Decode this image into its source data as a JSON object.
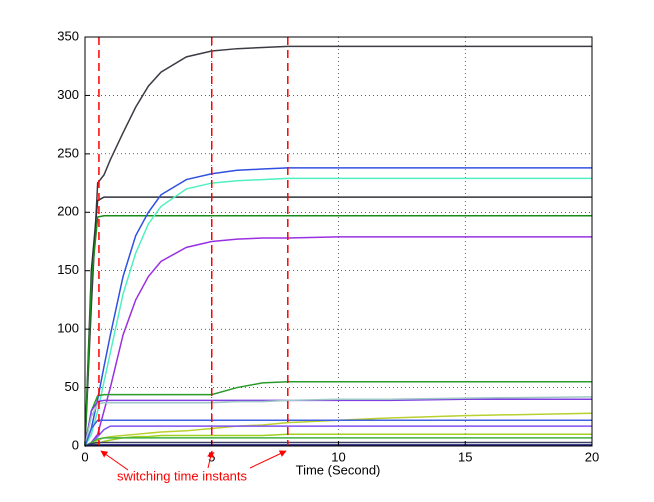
{
  "chart_data": {
    "type": "line",
    "xlabel": "Time (Second)",
    "annotation": "switching time instants",
    "annotation_color": "#ff0000",
    "switch_times": [
      0.55,
      5,
      8
    ],
    "xlim": [
      0,
      20
    ],
    "ylim": [
      0,
      350
    ],
    "xticks": [
      0,
      5,
      10,
      15,
      20
    ],
    "yticks": [
      0,
      50,
      100,
      150,
      200,
      250,
      300,
      350
    ],
    "grid": true,
    "x": [
      0,
      0.25,
      0.5,
      0.75,
      1,
      1.5,
      2,
      2.5,
      3,
      4,
      5,
      6,
      7,
      8,
      10,
      12,
      15,
      20
    ],
    "series": [
      {
        "color": "#3c3c44",
        "values": [
          0,
          120,
          225,
          232,
          245,
          268,
          290,
          308,
          320,
          333,
          338,
          340,
          341,
          342,
          342,
          342,
          342,
          342
        ]
      },
      {
        "color": "#303038",
        "values": [
          0,
          150,
          210,
          213,
          213,
          213,
          213,
          213,
          213,
          213,
          213,
          213,
          213,
          213,
          213,
          213,
          213,
          213
        ]
      },
      {
        "color": "#1a8a1a",
        "values": [
          0,
          140,
          196,
          197,
          197,
          197,
          197,
          197,
          197,
          197,
          197,
          197,
          197,
          197,
          197,
          197,
          197,
          197
        ]
      },
      {
        "color": "#3050e0",
        "values": [
          0,
          15,
          40,
          68,
          95,
          145,
          180,
          200,
          215,
          228,
          233,
          236,
          237,
          238,
          238,
          238,
          238,
          238
        ]
      },
      {
        "color": "#50f0c0",
        "values": [
          0,
          10,
          30,
          55,
          80,
          130,
          165,
          190,
          205,
          220,
          225,
          227,
          228,
          229,
          229,
          229,
          229,
          229
        ]
      },
      {
        "color": "#9a30e0",
        "values": [
          0,
          3,
          10,
          30,
          50,
          95,
          125,
          145,
          158,
          170,
          175,
          177,
          178,
          178,
          179,
          179,
          179,
          179
        ]
      },
      {
        "color": "#2a9a2a",
        "values": [
          0,
          30,
          43,
          44,
          44,
          44,
          44,
          44,
          44,
          44,
          44,
          50,
          54,
          55,
          55,
          55,
          55,
          55
        ]
      },
      {
        "color": "#8040e0",
        "values": [
          0,
          30,
          38,
          39,
          39,
          39,
          39,
          39,
          39,
          39,
          39,
          39,
          39,
          39,
          39,
          39,
          40,
          40
        ]
      },
      {
        "color": "#a0c8c8",
        "values": [
          0,
          25,
          36,
          37,
          37,
          37,
          37,
          37,
          37,
          37,
          37,
          38,
          38,
          39,
          40,
          40,
          41,
          42
        ]
      },
      {
        "color": "#b8d030",
        "values": [
          0,
          2,
          5,
          7,
          8,
          9,
          10,
          11,
          12,
          13,
          15,
          17,
          18,
          20,
          22,
          24,
          26,
          28
        ]
      },
      {
        "color": "#4060e0",
        "values": [
          0,
          15,
          22,
          22,
          22,
          22,
          22,
          22,
          22,
          22,
          22,
          22,
          22,
          22,
          22,
          22,
          22,
          22
        ]
      },
      {
        "color": "#8050f0",
        "values": [
          0,
          3,
          8,
          14,
          17,
          17,
          17,
          17,
          17,
          17,
          17,
          17,
          17,
          17,
          17,
          17,
          17,
          17
        ]
      },
      {
        "color": "#a0d020",
        "values": [
          0,
          1,
          2,
          4,
          5,
          7,
          8,
          8,
          9,
          9,
          9,
          9,
          9,
          10,
          10,
          10,
          10,
          10
        ]
      },
      {
        "color": "#40b040",
        "values": [
          0,
          3,
          6,
          7,
          7,
          7,
          7,
          7,
          7,
          7,
          7,
          7,
          7,
          7,
          7,
          7,
          7,
          7
        ]
      },
      {
        "color": "#404060",
        "values": [
          0,
          2,
          3,
          3,
          3,
          3,
          3,
          3,
          3,
          3,
          3,
          3,
          3,
          3,
          3,
          3,
          3,
          3
        ]
      },
      {
        "color": "#202080",
        "values": [
          0,
          1,
          1,
          1,
          1,
          1,
          1,
          1,
          1,
          1,
          1,
          1,
          1,
          1,
          1,
          1,
          1,
          1
        ]
      }
    ]
  }
}
